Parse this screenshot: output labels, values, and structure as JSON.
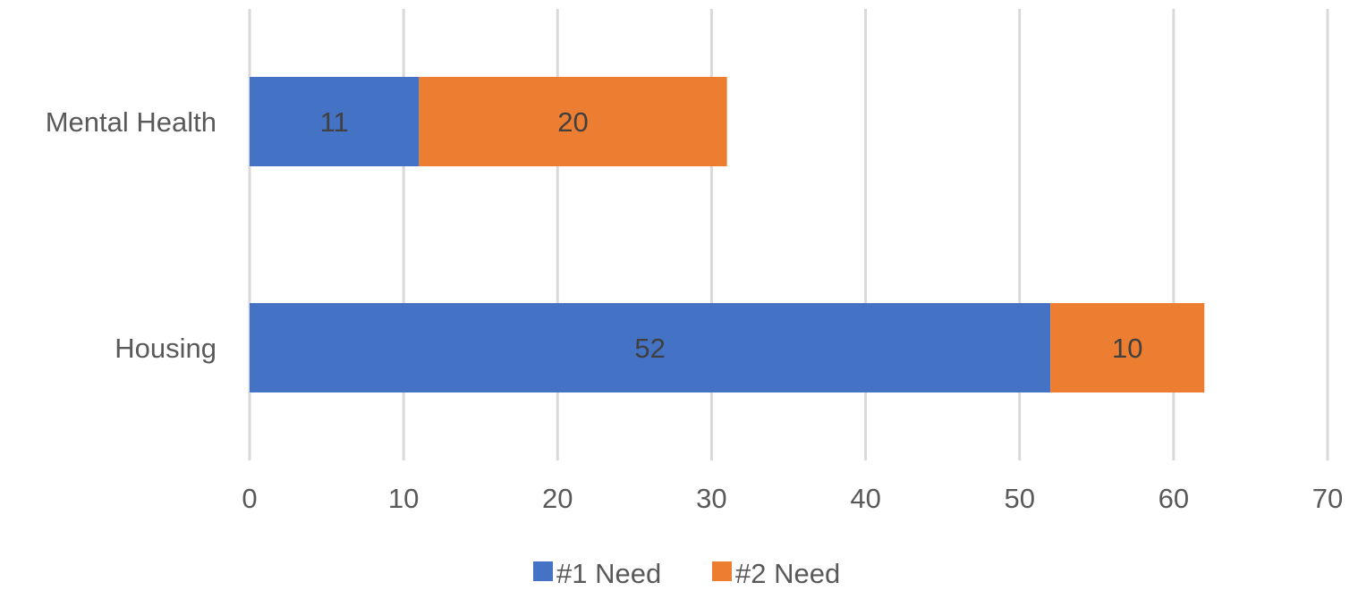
{
  "chart_data": {
    "type": "bar",
    "orientation": "horizontal",
    "stacked": true,
    "categories": [
      "Mental Health",
      "Housing"
    ],
    "series": [
      {
        "name": "#1 Need",
        "values": [
          11,
          52
        ],
        "color": "#4472c4"
      },
      {
        "name": "#2 Need",
        "values": [
          20,
          10
        ],
        "color": "#ed7d31"
      }
    ],
    "xlim": [
      0,
      70
    ],
    "xticks": [
      0,
      10,
      20,
      30,
      40,
      50,
      60,
      70
    ],
    "grid": true,
    "data_labels": true,
    "legend_position": "bottom",
    "title": "",
    "xlabel": "",
    "ylabel": ""
  }
}
